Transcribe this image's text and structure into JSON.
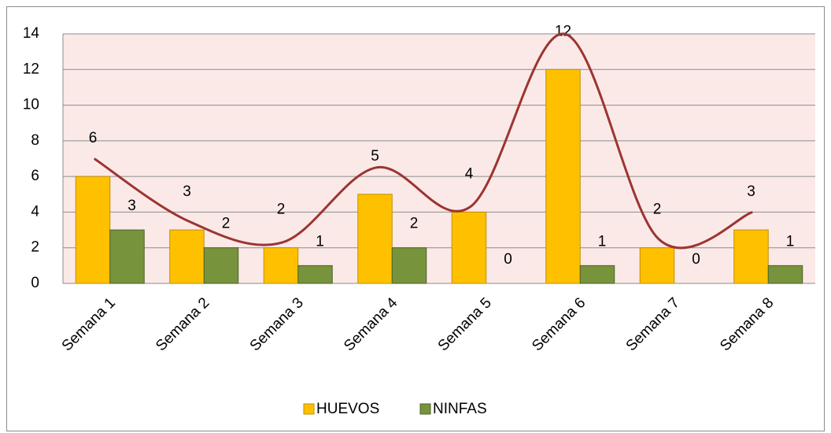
{
  "chart_data": {
    "type": "bar",
    "categories": [
      "Semana 1",
      "Semana 2",
      "Semana 3",
      "Semana 4",
      "Semana 5",
      "Semana 6",
      "Semana 7",
      "Semana 8"
    ],
    "series": [
      {
        "name": "HUEVOS",
        "color": "#ffc000",
        "values": [
          6,
          3,
          2,
          5,
          4,
          12,
          2,
          3
        ]
      },
      {
        "name": "NINFAS",
        "color": "#77933c",
        "values": [
          3,
          2,
          1,
          2,
          0,
          1,
          0,
          1
        ]
      },
      {
        "type": "line",
        "color": "#9b3530",
        "values": [
          7,
          3.5,
          2.3,
          6.5,
          4.3,
          14,
          2.5,
          4
        ]
      }
    ],
    "ylim": [
      0,
      14
    ],
    "yticks": [
      0,
      2,
      4,
      6,
      8,
      10,
      12,
      14
    ],
    "grid": true,
    "legend": "bottom"
  }
}
